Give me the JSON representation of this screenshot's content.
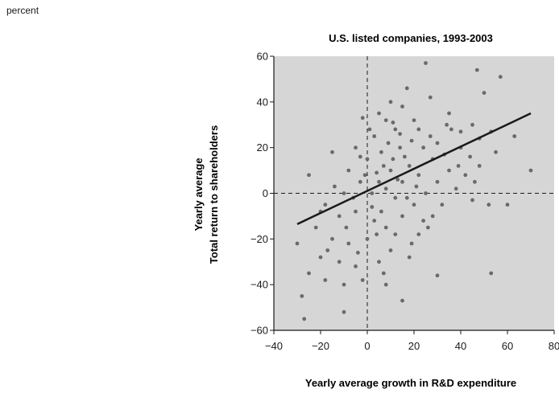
{
  "unit_note": "percent",
  "colors": {
    "plot_background": "#d6d6d6",
    "points": "#6a6a6a",
    "trend_line": "#1a1a1a",
    "axis": "#1a1a1a"
  },
  "chart_data": {
    "type": "scatter",
    "title": "U.S. listed companies, 1993-2003",
    "xlabel": "Yearly average growth in R&D expenditure",
    "ylabel_line1": "Yearly average",
    "ylabel_line2": "Total return to shareholders",
    "xlim": [
      -40,
      80
    ],
    "ylim": [
      -60,
      60
    ],
    "x_ticks": [
      -40,
      -20,
      0,
      20,
      40,
      60,
      80
    ],
    "y_ticks": [
      -60,
      -40,
      -20,
      0,
      20,
      40,
      60
    ],
    "grid": false,
    "reference_lines": {
      "x": 0,
      "y": 0,
      "style": "dashed"
    },
    "trend_line": {
      "x": [
        -30,
        70
      ],
      "y": [
        -13.5,
        35
      ]
    },
    "points_description": "Dense cloud of several hundred company observations centred near (10, 8), spreading from about x=-30 to x=70 and y=-55 to y=57.",
    "points": [
      [
        25,
        57
      ],
      [
        47,
        54
      ],
      [
        57,
        51
      ],
      [
        17,
        46
      ],
      [
        50,
        44
      ],
      [
        10,
        40
      ],
      [
        27,
        42
      ],
      [
        15,
        38
      ],
      [
        35,
        35
      ],
      [
        5,
        35
      ],
      [
        20,
        32
      ],
      [
        -2,
        33
      ],
      [
        45,
        30
      ],
      [
        8,
        32
      ],
      [
        22,
        28
      ],
      [
        53,
        27
      ],
      [
        -5,
        20
      ],
      [
        3,
        25
      ],
      [
        12,
        28
      ],
      [
        30,
        22
      ],
      [
        40,
        20
      ],
      [
        63,
        25
      ],
      [
        70,
        10
      ],
      [
        48,
        12
      ],
      [
        55,
        18
      ],
      [
        -15,
        18
      ],
      [
        -25,
        8
      ],
      [
        -8,
        10
      ],
      [
        0,
        15
      ],
      [
        6,
        18
      ],
      [
        14,
        20
      ],
      [
        18,
        12
      ],
      [
        28,
        15
      ],
      [
        35,
        10
      ],
      [
        42,
        8
      ],
      [
        10,
        10
      ],
      [
        5,
        5
      ],
      [
        -3,
        5
      ],
      [
        15,
        5
      ],
      [
        22,
        8
      ],
      [
        30,
        5
      ],
      [
        8,
        2
      ],
      [
        2,
        0
      ],
      [
        -10,
        0
      ],
      [
        12,
        -2
      ],
      [
        20,
        -5
      ],
      [
        25,
        0
      ],
      [
        38,
        2
      ],
      [
        45,
        -3
      ],
      [
        52,
        -5
      ],
      [
        60,
        -5
      ],
      [
        -18,
        -5
      ],
      [
        -12,
        -10
      ],
      [
        -5,
        -8
      ],
      [
        3,
        -12
      ],
      [
        8,
        -15
      ],
      [
        15,
        -10
      ],
      [
        22,
        -18
      ],
      [
        28,
        -10
      ],
      [
        -22,
        -15
      ],
      [
        -15,
        -20
      ],
      [
        -8,
        -22
      ],
      [
        0,
        -20
      ],
      [
        10,
        -25
      ],
      [
        18,
        -28
      ],
      [
        -20,
        -28
      ],
      [
        -12,
        -30
      ],
      [
        -5,
        -32
      ],
      [
        5,
        -30
      ],
      [
        -25,
        -35
      ],
      [
        -18,
        -38
      ],
      [
        -10,
        -40
      ],
      [
        -2,
        -38
      ],
      [
        8,
        -40
      ],
      [
        15,
        -47
      ],
      [
        -28,
        -45
      ],
      [
        -27,
        -55
      ],
      [
        -10,
        -52
      ],
      [
        30,
        -36
      ],
      [
        53,
        -35
      ],
      [
        -30,
        -22
      ],
      [
        33,
        17
      ],
      [
        36,
        28
      ],
      [
        44,
        16
      ],
      [
        48,
        24
      ],
      [
        24,
        20
      ],
      [
        11,
        15
      ],
      [
        7,
        12
      ],
      [
        16,
        16
      ],
      [
        19,
        23
      ],
      [
        13,
        6
      ],
      [
        4,
        9
      ],
      [
        -1,
        8
      ],
      [
        9,
        22
      ],
      [
        21,
        3
      ],
      [
        27,
        25
      ],
      [
        -6,
        -2
      ],
      [
        -14,
        3
      ],
      [
        2,
        -6
      ],
      [
        6,
        -8
      ],
      [
        17,
        -2
      ],
      [
        24,
        -12
      ],
      [
        32,
        -5
      ],
      [
        -3,
        16
      ],
      [
        1,
        28
      ],
      [
        11,
        31
      ],
      [
        40,
        27
      ],
      [
        46,
        5
      ],
      [
        34,
        30
      ],
      [
        14,
        26
      ],
      [
        -20,
        -8
      ],
      [
        -9,
        -15
      ],
      [
        4,
        -18
      ],
      [
        12,
        -18
      ],
      [
        19,
        -22
      ],
      [
        -17,
        -25
      ],
      [
        -4,
        -26
      ],
      [
        7,
        -35
      ],
      [
        26,
        -15
      ],
      [
        39,
        12
      ]
    ]
  }
}
